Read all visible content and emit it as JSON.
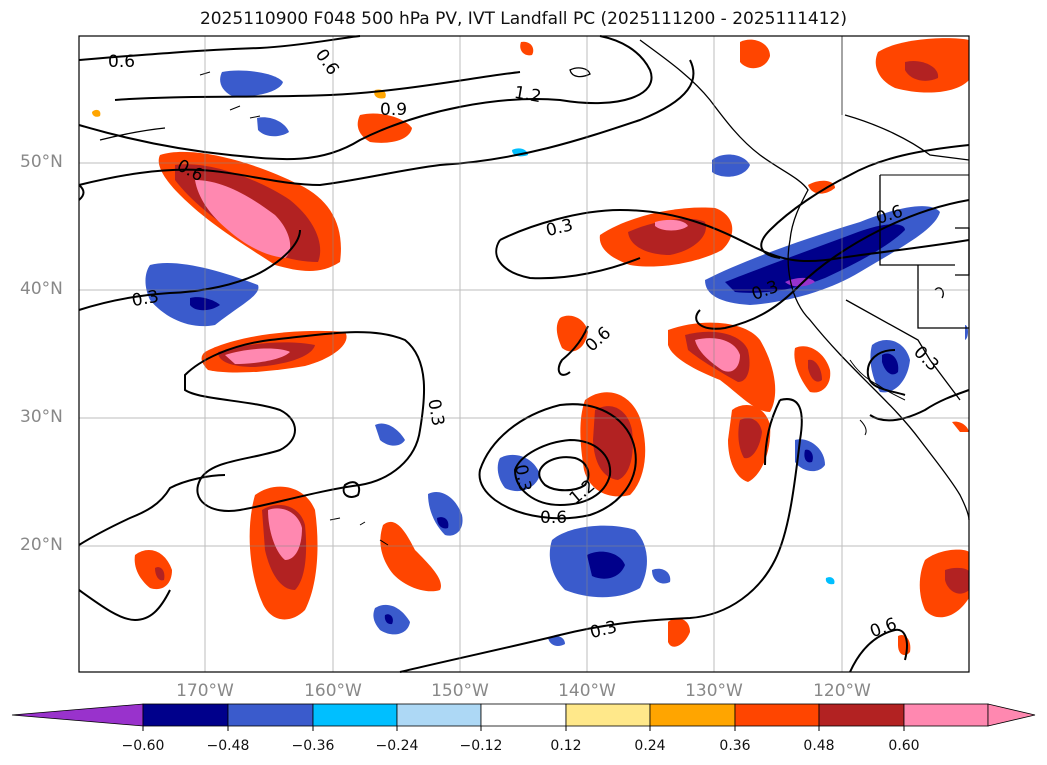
{
  "title": "2025110900 F048 500 hPa PV, IVT Landfall PC (2025111200 - 2025111412)",
  "map": {
    "lat_labels": [
      "50°N",
      "40°N",
      "30°N",
      "20°N"
    ],
    "lon_labels": [
      "170°W",
      "160°W",
      "150°W",
      "140°W",
      "130°W",
      "120°W"
    ],
    "contour_labels": [
      "0.6",
      "0.6",
      "1.2",
      "0.9",
      "0.6",
      "0.3",
      "0.6",
      "0.3",
      "0.6",
      "0.3",
      "0.3",
      "0.3",
      "1.2",
      "0.6",
      "0.3",
      "0.3",
      "0.6"
    ]
  },
  "colorbar": {
    "ticks": [
      "−0.60",
      "−0.48",
      "−0.36",
      "−0.24",
      "−0.12",
      "0.12",
      "0.24",
      "0.36",
      "0.48",
      "0.60"
    ],
    "colors": [
      "#9932cc",
      "#00008b",
      "#3a5bcc",
      "#00bfff",
      "#add8f5",
      "#ffffff",
      "#ffe88a",
      "#ffa500",
      "#ff4500",
      "#b22222",
      "#ff88b0"
    ]
  }
}
